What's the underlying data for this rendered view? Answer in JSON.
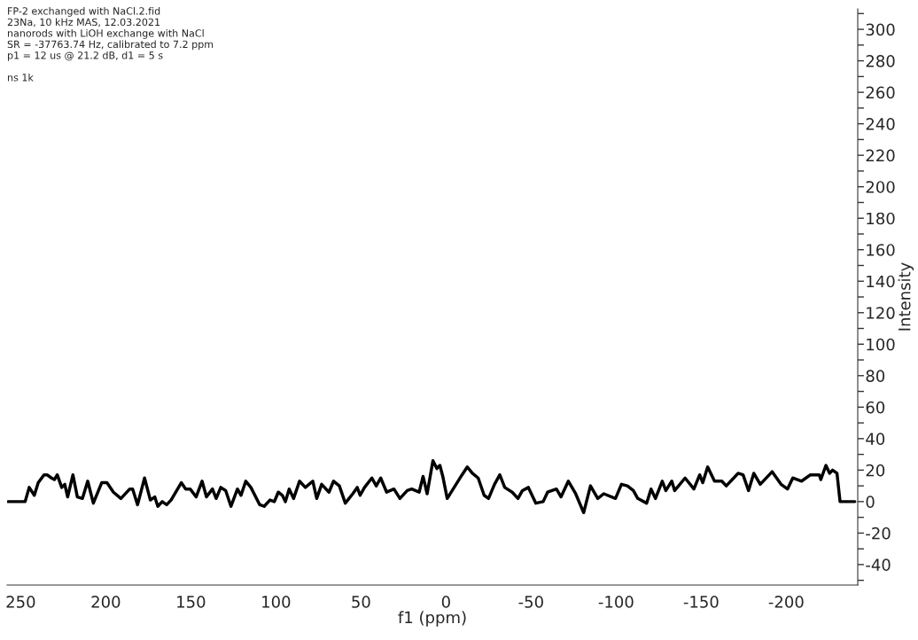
{
  "chart_data": {
    "type": "line",
    "annotations": [
      "FP-2 exchanged with NaCl.2.fid",
      "23Na, 10 kHz MAS, 12.03.2021",
      "nanorods with LiOH exchange with NaCl",
      "SR = -37763.74 Hz, calibrated to 7.2 ppm",
      "p1 = 12 us @ 21.2 dB, d1 = 5 s",
      "ns 1k"
    ],
    "xlabel": "f1 (ppm)",
    "ylabel": "Intensity",
    "series": [
      {
        "color": "#000000",
        "x": [
          257.3,
          247.4,
          245.0,
          242.0,
          239.7,
          236.3,
          234.5,
          231.9,
          230.2,
          228.5,
          225.9,
          224.1,
          222.4,
          219.3,
          216.7,
          213.7,
          210.6,
          207.3,
          202.4,
          199.3,
          195.5,
          191.1,
          185.9,
          184.2,
          181.3,
          177.2,
          173.8,
          171.2,
          169.4,
          166.8,
          164.2,
          161.6,
          155.6,
          153.0,
          150.4,
          146.9,
          143.4,
          140.8,
          137.3,
          135.1,
          132.4,
          129.5,
          126.4,
          122.6,
          120.5,
          117.7,
          114.7,
          109.5,
          106.9,
          103.5,
          100.9,
          98.6,
          96.2,
          94.4,
          92.2,
          89.6,
          86.1,
          82.7,
          78.3,
          76.0,
          73.1,
          68.8,
          66.1,
          62.7,
          59.2,
          54.8,
          52.2,
          50.5,
          47.9,
          43.6,
          41.0,
          38.4,
          34.9,
          30.6,
          27.1,
          22.8,
          20.2,
          15.8,
          13.5,
          11.1,
          7.7,
          5.4,
          3.6,
          1.9,
          -0.7,
          -4.2,
          -9.4,
          -12.5,
          -15.5,
          -18.9,
          -22.4,
          -25.0,
          -28.5,
          -31.6,
          -34.5,
          -38.9,
          -42.3,
          -44.9,
          -48.4,
          -52.8,
          -57.1,
          -59.7,
          -64.9,
          -67.6,
          -71.9,
          -76.2,
          -80.9,
          -84.9,
          -89.2,
          -92.7,
          -99.6,
          -103.1,
          -106.6,
          -110.1,
          -112.7,
          -117.9,
          -120.5,
          -123.1,
          -127.1,
          -129.2,
          -132.7,
          -134.4,
          -140.5,
          -145.7,
          -149.1,
          -150.9,
          -153.8,
          -157.8,
          -162.1,
          -164.7,
          -169.1,
          -171.7,
          -174.6,
          -177.8,
          -180.9,
          -184.7,
          -191.7,
          -196.9,
          -200.7,
          -203.8,
          -209.0,
          -214.2,
          -219.4,
          -220.3,
          -223.3,
          -225.5,
          -227.2,
          -229.8,
          -231.6,
          -240.3
        ],
        "values": [
          0,
          0,
          9,
          4,
          12,
          17,
          17,
          15,
          14,
          17,
          9,
          11,
          3,
          17,
          3,
          2,
          13,
          -1,
          12,
          12,
          6,
          2,
          8,
          8,
          -2,
          15,
          1,
          3,
          -3,
          0,
          -2,
          1,
          12,
          8,
          8,
          3,
          13,
          3,
          8,
          2,
          9,
          7,
          -3,
          8,
          4,
          13,
          9,
          -2,
          -3,
          1,
          0,
          6,
          4,
          0,
          8,
          2,
          13,
          9,
          13,
          2,
          11,
          6,
          13,
          10,
          -1,
          5,
          9,
          4,
          9,
          15,
          10,
          15,
          6,
          8,
          2,
          7,
          8,
          6,
          16,
          5,
          26,
          21,
          23,
          16,
          2,
          8,
          17,
          22,
          18,
          15,
          4,
          2,
          11,
          17,
          9,
          6,
          2,
          7,
          9,
          -1,
          0,
          6,
          8,
          3,
          13,
          5,
          -7,
          10,
          2,
          5,
          2,
          11,
          10,
          7,
          2,
          -1,
          8,
          2,
          13,
          7,
          13,
          7,
          15,
          8,
          17,
          12,
          22,
          13,
          13,
          10,
          15,
          18,
          17,
          7,
          18,
          11,
          19,
          11,
          8,
          15,
          13,
          17,
          17,
          14,
          23,
          18,
          20,
          18,
          0,
          0
        ]
      }
    ],
    "xlim": [
      258,
      -242
    ],
    "xticks": [
      250,
      200,
      150,
      100,
      50,
      0,
      {
        "value": -50,
        "label": "-50"
      },
      {
        "value": -100,
        "label": "-100"
      },
      {
        "value": -150,
        "label": "-150"
      },
      {
        "value": -200,
        "label": "-200"
      }
    ],
    "ylim": [
      -53,
      313
    ],
    "yticks": [
      {
        "value": -50,
        "label": null
      },
      {
        "value": -40,
        "label": "-40"
      },
      {
        "value": -30,
        "label": null
      },
      {
        "value": -20,
        "label": "-20"
      },
      {
        "value": -10,
        "label": null
      },
      0,
      {
        "value": 10,
        "label": null
      },
      20,
      {
        "value": 30,
        "label": null
      },
      40,
      {
        "value": 50,
        "label": null
      },
      60,
      {
        "value": 70,
        "label": null
      },
      80,
      {
        "value": 90,
        "label": null
      },
      100,
      {
        "value": 110,
        "label": null
      },
      120,
      {
        "value": 130,
        "label": null
      },
      140,
      {
        "value": 150,
        "label": null
      },
      160,
      {
        "value": 170,
        "label": null
      },
      180,
      {
        "value": 190,
        "label": null
      },
      200,
      {
        "value": 210,
        "label": null
      },
      220,
      {
        "value": 230,
        "label": null
      },
      240,
      {
        "value": 250,
        "label": null
      },
      260,
      {
        "value": 270,
        "label": null
      },
      280,
      {
        "value": 290,
        "label": null
      },
      300,
      {
        "value": 310,
        "label": null
      }
    ],
    "grid": false,
    "legend": false
  }
}
